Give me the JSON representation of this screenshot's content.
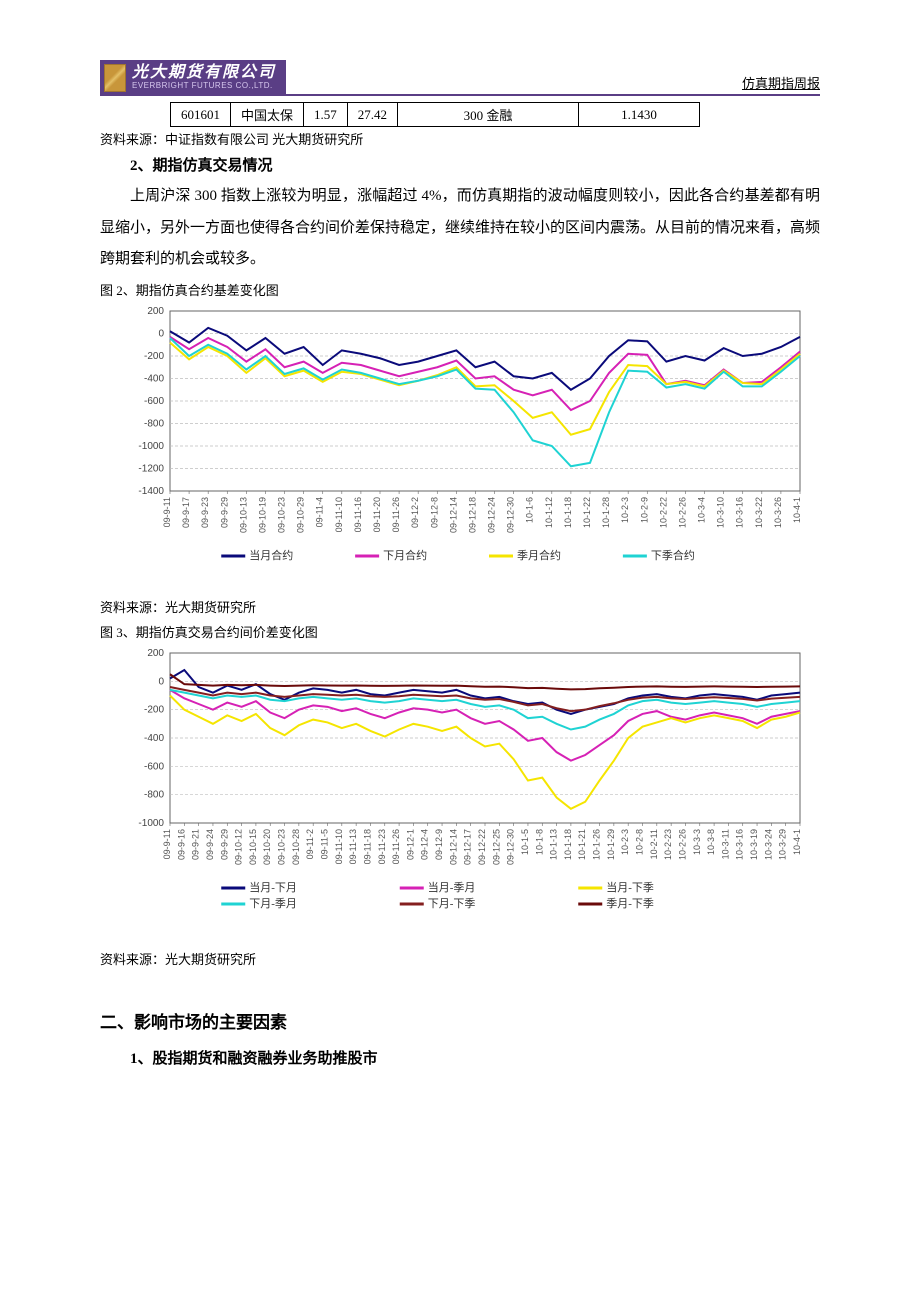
{
  "header": {
    "logo_cn": "光大期货有限公司",
    "logo_en": "EVERBRIGHT FUTURES CO.,LTD.",
    "right_label": "仿真期指周报"
  },
  "table_row": {
    "code": "601601",
    "name": "中国太保",
    "v1": "1.57",
    "v2": "27.42",
    "cat": "300 金融",
    "v3": "1.1430"
  },
  "source1": "资料来源：中证指数有限公司  光大期货研究所",
  "section_2_title": "2、期指仿真交易情况",
  "para1": "上周沪深 300 指数上涨较为明显，涨幅超过 4%，而仿真期指的波动幅度则较小，因此各合约基差都有明显缩小，另外一方面也使得各合约间价差保持稳定，继续维持在较小的区间内震荡。从目前的情况来看，高频跨期套利的机会或较多。",
  "fig2_caption": "图 2、期指仿真合约基差变化图",
  "fig3_caption": "图 3、期指仿真交易合约间价差变化图",
  "source2": "资料来源：光大期货研究所",
  "source3": "资料来源：光大期货研究所",
  "heading2": "二、影响市场的主要因素",
  "heading3": "1、股指期货和融资融券业务助推股市",
  "chart2": {
    "type": "line",
    "ylim": [
      -1400,
      200
    ],
    "ytick_step": 200,
    "yticks": [
      200,
      0,
      -200,
      -400,
      -600,
      -800,
      -1000,
      -1200,
      -1400
    ],
    "x_labels": [
      "09-9-11",
      "09-9-17",
      "09-9-23",
      "09-9-29",
      "09-10-13",
      "09-10-19",
      "09-10-23",
      "09-10-29",
      "09-11-4",
      "09-11-10",
      "09-11-16",
      "09-11-20",
      "09-11-26",
      "09-12-2",
      "09-12-8",
      "09-12-14",
      "09-12-18",
      "09-12-24",
      "09-12-30",
      "10-1-6",
      "10-1-12",
      "10-1-18",
      "10-1-22",
      "10-1-28",
      "10-2-3",
      "10-2-9",
      "10-2-22",
      "10-2-26",
      "10-3-4",
      "10-3-10",
      "10-3-16",
      "10-3-22",
      "10-3-26",
      "10-4-1"
    ],
    "background_color": "#ffffff",
    "grid_color": "#bfbfbf",
    "axis_color": "#666666",
    "tick_font_size": 10,
    "legend": [
      {
        "label": "当月合约",
        "color": "#0a0a7a"
      },
      {
        "label": "下月合约",
        "color": "#d621b5"
      },
      {
        "label": "季月合约",
        "color": "#f5e500"
      },
      {
        "label": "下季合约",
        "color": "#1fd3d3"
      }
    ],
    "series": {
      "当月合约": {
        "color": "#0a0a7a",
        "width": 2,
        "values": [
          20,
          -80,
          50,
          -20,
          -150,
          -40,
          -180,
          -120,
          -280,
          -150,
          -180,
          -220,
          -280,
          -250,
          -200,
          -150,
          -300,
          -250,
          -380,
          -400,
          -350,
          -500,
          -400,
          -200,
          -60,
          -70,
          -250,
          -200,
          -240,
          -130,
          -200,
          -180,
          -120,
          -30
        ]
      },
      "下月合约": {
        "color": "#d621b5",
        "width": 2,
        "values": [
          -30,
          -140,
          -40,
          -120,
          -250,
          -140,
          -300,
          -250,
          -350,
          -260,
          -280,
          -330,
          -380,
          -340,
          -300,
          -240,
          -400,
          -380,
          -500,
          -550,
          -500,
          -680,
          -600,
          -350,
          -180,
          -190,
          -450,
          -420,
          -460,
          -320,
          -440,
          -430,
          -300,
          -160
        ]
      },
      "季月合约": {
        "color": "#f5e500",
        "width": 2,
        "values": [
          -80,
          -230,
          -120,
          -200,
          -350,
          -220,
          -380,
          -330,
          -430,
          -340,
          -360,
          -410,
          -460,
          -420,
          -370,
          -300,
          -470,
          -460,
          -600,
          -750,
          -700,
          -900,
          -850,
          -520,
          -280,
          -290,
          -450,
          -430,
          -470,
          -330,
          -440,
          -450,
          -320,
          -180
        ]
      },
      "下季合约": {
        "color": "#1fd3d3",
        "width": 2,
        "values": [
          -40,
          -200,
          -100,
          -180,
          -320,
          -200,
          -360,
          -310,
          -410,
          -320,
          -350,
          -400,
          -450,
          -420,
          -380,
          -320,
          -490,
          -500,
          -700,
          -950,
          -1000,
          -1180,
          -1150,
          -700,
          -330,
          -340,
          -480,
          -450,
          -490,
          -340,
          -470,
          -470,
          -340,
          -200
        ]
      }
    }
  },
  "chart3": {
    "type": "line",
    "ylim": [
      -1000,
      200
    ],
    "ytick_step": 200,
    "yticks": [
      200,
      0,
      -200,
      -400,
      -600,
      -800,
      -1000
    ],
    "x_labels": [
      "09-9-11",
      "09-9-16",
      "09-9-21",
      "09-9-24",
      "09-9-29",
      "09-10-12",
      "09-10-15",
      "09-10-20",
      "09-10-23",
      "09-10-28",
      "09-11-2",
      "09-11-5",
      "09-11-10",
      "09-11-13",
      "09-11-18",
      "09-11-23",
      "09-11-26",
      "09-12-1",
      "09-12-4",
      "09-12-9",
      "09-12-14",
      "09-12-17",
      "09-12-22",
      "09-12-25",
      "09-12-30",
      "10-1-5",
      "10-1-8",
      "10-1-13",
      "10-1-18",
      "10-1-21",
      "10-1-26",
      "10-1-29",
      "10-2-3",
      "10-2-8",
      "10-2-11",
      "10-2-23",
      "10-2-26",
      "10-3-3",
      "10-3-8",
      "10-3-11",
      "10-3-16",
      "10-3-19",
      "10-3-24",
      "10-3-29",
      "10-4-1"
    ],
    "background_color": "#ffffff",
    "grid_color": "#bfbfbf",
    "axis_color": "#666666",
    "tick_font_size": 10,
    "legend": [
      {
        "label": "当月-下月",
        "color": "#0a0a7a"
      },
      {
        "label": "当月-季月",
        "color": "#d621b5"
      },
      {
        "label": "当月-下季",
        "color": "#f5e500"
      },
      {
        "label": "下月-季月",
        "color": "#1fd3d3"
      },
      {
        "label": "下月-下季",
        "color": "#841f1f"
      },
      {
        "label": "季月-下季",
        "color": "#6a0a0a"
      }
    ],
    "series": {
      "当月-下月": {
        "color": "#0a0a7a",
        "width": 2,
        "values": [
          20,
          80,
          -40,
          -80,
          -30,
          -60,
          -20,
          -90,
          -130,
          -80,
          -50,
          -60,
          -80,
          -60,
          -90,
          -100,
          -80,
          -60,
          -70,
          -80,
          -60,
          -100,
          -120,
          -110,
          -140,
          -160,
          -150,
          -200,
          -230,
          -200,
          -180,
          -160,
          -120,
          -100,
          -90,
          -110,
          -120,
          -100,
          -90,
          -100,
          -110,
          -130,
          -100,
          -90,
          -80
        ]
      },
      "当月-季月": {
        "color": "#d621b5",
        "width": 2,
        "values": [
          -60,
          -120,
          -160,
          -200,
          -150,
          -180,
          -140,
          -220,
          -260,
          -200,
          -170,
          -180,
          -210,
          -190,
          -230,
          -260,
          -220,
          -190,
          -200,
          -220,
          -200,
          -260,
          -300,
          -280,
          -340,
          -420,
          -400,
          -500,
          -560,
          -520,
          -450,
          -380,
          -280,
          -230,
          -210,
          -250,
          -270,
          -240,
          -220,
          -240,
          -260,
          -300,
          -250,
          -230,
          -210
        ]
      },
      "当月-下季": {
        "color": "#f5e500",
        "width": 2,
        "values": [
          -100,
          -200,
          -250,
          -300,
          -240,
          -280,
          -230,
          -330,
          -380,
          -310,
          -270,
          -290,
          -330,
          -300,
          -350,
          -390,
          -340,
          -300,
          -320,
          -350,
          -320,
          -400,
          -460,
          -440,
          -550,
          -700,
          -680,
          -820,
          -900,
          -850,
          -700,
          -560,
          -400,
          -320,
          -290,
          -260,
          -290,
          -260,
          -240,
          -260,
          -280,
          -330,
          -270,
          -250,
          -220
        ]
      },
      "下月-季月": {
        "color": "#1fd3d3",
        "width": 2,
        "values": [
          -60,
          -80,
          -100,
          -120,
          -100,
          -110,
          -100,
          -130,
          -140,
          -120,
          -110,
          -120,
          -130,
          -120,
          -140,
          -150,
          -140,
          -120,
          -130,
          -140,
          -130,
          -160,
          -180,
          -170,
          -200,
          -260,
          -250,
          -300,
          -340,
          -320,
          -270,
          -230,
          -170,
          -140,
          -130,
          -150,
          -160,
          -150,
          -140,
          -150,
          -160,
          -180,
          -160,
          -150,
          -140
        ]
      },
      "下月-下季": {
        "color": "#841f1f",
        "width": 2,
        "values": [
          -40,
          -60,
          -80,
          -100,
          -80,
          -90,
          -80,
          -100,
          -110,
          -100,
          -90,
          -95,
          -100,
          -95,
          -105,
          -110,
          -105,
          -95,
          -100,
          -105,
          -100,
          -120,
          -130,
          -125,
          -145,
          -170,
          -160,
          -190,
          -210,
          -200,
          -175,
          -155,
          -130,
          -115,
          -110,
          -120,
          -125,
          -118,
          -112,
          -118,
          -124,
          -135,
          -122,
          -116,
          -110
        ]
      },
      "季月-下季": {
        "color": "#6a0a0a",
        "width": 2,
        "values": [
          50,
          -20,
          -25,
          -30,
          -25,
          -28,
          -25,
          -30,
          -33,
          -30,
          -28,
          -29,
          -30,
          -29,
          -31,
          -32,
          -31,
          -29,
          -30,
          -31,
          -30,
          -35,
          -38,
          -37,
          -42,
          -48,
          -46,
          -52,
          -57,
          -55,
          -49,
          -45,
          -40,
          -37,
          -36,
          -38,
          -39,
          -37,
          -36,
          -37,
          -38,
          -40,
          -38,
          -37,
          -36
        ]
      }
    }
  }
}
